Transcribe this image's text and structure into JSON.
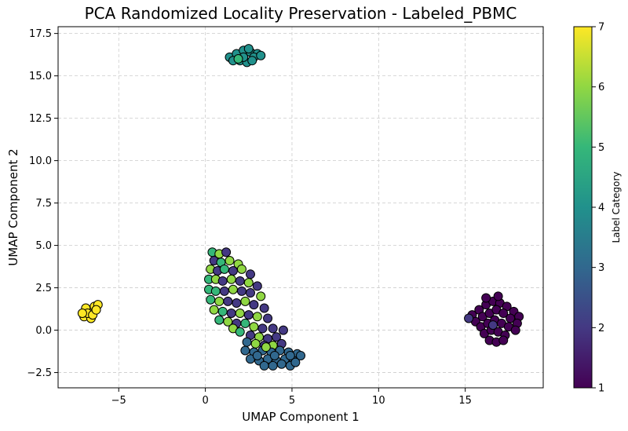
{
  "chart_data": {
    "type": "scatter",
    "title": "PCA Randomized Locality Preservation - Labeled_PBMC",
    "xlabel": "UMAP Component 1",
    "ylabel": "UMAP Component 2",
    "xlim": [
      -8.5,
      19.5
    ],
    "ylim": [
      -3.4,
      17.9
    ],
    "xticks": [
      -5,
      0,
      5,
      10,
      15
    ],
    "xtick_labels": [
      "−5",
      "0",
      "5",
      "10",
      "15"
    ],
    "yticks": [
      -2.5,
      0.0,
      2.5,
      5.0,
      7.5,
      10.0,
      12.5,
      15.0,
      17.5
    ],
    "ytick_labels": [
      "−2.5",
      "0.0",
      "2.5",
      "5.0",
      "7.5",
      "10.0",
      "12.5",
      "15.0",
      "17.5"
    ],
    "grid": true,
    "colormap": "viridis",
    "marker_edge_color": "#000000",
    "colorbar": {
      "label": "Label Category",
      "range": [
        1,
        7
      ],
      "ticks": [
        1,
        2,
        3,
        4,
        5,
        6,
        7
      ],
      "tick_labels": [
        "1",
        "2",
        "3",
        "4",
        "5",
        "6",
        "7"
      ]
    },
    "points": [
      {
        "x": -7.0,
        "y": 0.8,
        "label": 7
      },
      {
        "x": -6.7,
        "y": 1.1,
        "label": 7
      },
      {
        "x": -6.4,
        "y": 1.4,
        "label": 7
      },
      {
        "x": -6.9,
        "y": 1.3,
        "label": 7
      },
      {
        "x": -6.6,
        "y": 0.7,
        "label": 7
      },
      {
        "x": -6.2,
        "y": 1.5,
        "label": 7
      },
      {
        "x": -6.8,
        "y": 1.0,
        "label": 7
      },
      {
        "x": -6.5,
        "y": 0.9,
        "label": 7
      },
      {
        "x": -6.3,
        "y": 1.2,
        "label": 7
      },
      {
        "x": -7.1,
        "y": 1.0,
        "label": 7
      },
      {
        "x": 1.4,
        "y": 16.1,
        "label": 4
      },
      {
        "x": 1.8,
        "y": 16.3,
        "label": 4
      },
      {
        "x": 2.2,
        "y": 16.5,
        "label": 4
      },
      {
        "x": 2.6,
        "y": 16.4,
        "label": 4
      },
      {
        "x": 3.0,
        "y": 16.3,
        "label": 4
      },
      {
        "x": 2.0,
        "y": 15.9,
        "label": 4
      },
      {
        "x": 2.4,
        "y": 15.8,
        "label": 4
      },
      {
        "x": 1.6,
        "y": 15.9,
        "label": 4
      },
      {
        "x": 2.8,
        "y": 16.1,
        "label": 4
      },
      {
        "x": 3.2,
        "y": 16.2,
        "label": 4
      },
      {
        "x": 2.2,
        "y": 16.1,
        "label": 4
      },
      {
        "x": 2.5,
        "y": 16.6,
        "label": 4
      },
      {
        "x": 1.9,
        "y": 16.0,
        "label": 5
      },
      {
        "x": 2.7,
        "y": 15.9,
        "label": 4
      },
      {
        "x": 0.4,
        "y": 4.6,
        "label": 5
      },
      {
        "x": 0.8,
        "y": 4.5,
        "label": 6
      },
      {
        "x": 1.2,
        "y": 4.6,
        "label": 2
      },
      {
        "x": 0.5,
        "y": 4.1,
        "label": 2
      },
      {
        "x": 0.9,
        "y": 4.0,
        "label": 5
      },
      {
        "x": 1.4,
        "y": 4.1,
        "label": 6
      },
      {
        "x": 1.9,
        "y": 3.9,
        "label": 6
      },
      {
        "x": 0.3,
        "y": 3.6,
        "label": 6
      },
      {
        "x": 0.7,
        "y": 3.5,
        "label": 2
      },
      {
        "x": 1.1,
        "y": 3.6,
        "label": 5
      },
      {
        "x": 1.6,
        "y": 3.5,
        "label": 2
      },
      {
        "x": 2.1,
        "y": 3.6,
        "label": 6
      },
      {
        "x": 2.6,
        "y": 3.3,
        "label": 2
      },
      {
        "x": 0.2,
        "y": 3.0,
        "label": 5
      },
      {
        "x": 0.6,
        "y": 3.0,
        "label": 6
      },
      {
        "x": 1.0,
        "y": 2.9,
        "label": 2
      },
      {
        "x": 1.5,
        "y": 3.0,
        "label": 6
      },
      {
        "x": 2.0,
        "y": 2.9,
        "label": 2
      },
      {
        "x": 2.5,
        "y": 2.8,
        "label": 6
      },
      {
        "x": 3.0,
        "y": 2.6,
        "label": 2
      },
      {
        "x": 0.2,
        "y": 2.4,
        "label": 5
      },
      {
        "x": 0.6,
        "y": 2.3,
        "label": 5
      },
      {
        "x": 1.1,
        "y": 2.3,
        "label": 2
      },
      {
        "x": 1.6,
        "y": 2.4,
        "label": 6
      },
      {
        "x": 2.1,
        "y": 2.3,
        "label": 2
      },
      {
        "x": 2.6,
        "y": 2.2,
        "label": 2
      },
      {
        "x": 3.2,
        "y": 2.0,
        "label": 6
      },
      {
        "x": 0.3,
        "y": 1.8,
        "label": 5
      },
      {
        "x": 0.8,
        "y": 1.7,
        "label": 6
      },
      {
        "x": 1.3,
        "y": 1.7,
        "label": 2
      },
      {
        "x": 1.8,
        "y": 1.6,
        "label": 2
      },
      {
        "x": 2.3,
        "y": 1.7,
        "label": 6
      },
      {
        "x": 2.8,
        "y": 1.5,
        "label": 2
      },
      {
        "x": 3.4,
        "y": 1.3,
        "label": 2
      },
      {
        "x": 0.5,
        "y": 1.2,
        "label": 6
      },
      {
        "x": 1.0,
        "y": 1.1,
        "label": 5
      },
      {
        "x": 1.5,
        "y": 1.0,
        "label": 2
      },
      {
        "x": 2.0,
        "y": 1.0,
        "label": 6
      },
      {
        "x": 2.5,
        "y": 0.9,
        "label": 2
      },
      {
        "x": 3.0,
        "y": 0.8,
        "label": 6
      },
      {
        "x": 3.6,
        "y": 0.7,
        "label": 2
      },
      {
        "x": 0.8,
        "y": 0.6,
        "label": 5
      },
      {
        "x": 1.3,
        "y": 0.5,
        "label": 6
      },
      {
        "x": 1.8,
        "y": 0.4,
        "label": 2
      },
      {
        "x": 2.3,
        "y": 0.4,
        "label": 5
      },
      {
        "x": 2.8,
        "y": 0.2,
        "label": 6
      },
      {
        "x": 3.3,
        "y": 0.1,
        "label": 2
      },
      {
        "x": 3.9,
        "y": 0.1,
        "label": 2
      },
      {
        "x": 1.6,
        "y": 0.1,
        "label": 6
      },
      {
        "x": 2.0,
        "y": -0.1,
        "label": 5
      },
      {
        "x": 2.6,
        "y": -0.3,
        "label": 2
      },
      {
        "x": 3.1,
        "y": -0.4,
        "label": 6
      },
      {
        "x": 3.6,
        "y": -0.5,
        "label": 2
      },
      {
        "x": 4.1,
        "y": -0.4,
        "label": 2
      },
      {
        "x": 4.5,
        "y": 0.0,
        "label": 2
      },
      {
        "x": 2.4,
        "y": -0.7,
        "label": 3
      },
      {
        "x": 2.9,
        "y": -0.8,
        "label": 6
      },
      {
        "x": 3.4,
        "y": -0.9,
        "label": 2
      },
      {
        "x": 3.9,
        "y": -0.9,
        "label": 6
      },
      {
        "x": 4.4,
        "y": -0.8,
        "label": 2
      },
      {
        "x": 2.3,
        "y": -1.2,
        "label": 3
      },
      {
        "x": 2.8,
        "y": -1.3,
        "label": 3
      },
      {
        "x": 3.3,
        "y": -1.2,
        "label": 3
      },
      {
        "x": 3.8,
        "y": -1.3,
        "label": 3
      },
      {
        "x": 4.3,
        "y": -1.2,
        "label": 3
      },
      {
        "x": 4.8,
        "y": -1.3,
        "label": 3
      },
      {
        "x": 5.3,
        "y": -1.4,
        "label": 3
      },
      {
        "x": 2.6,
        "y": -1.7,
        "label": 3
      },
      {
        "x": 3.1,
        "y": -1.8,
        "label": 3
      },
      {
        "x": 3.6,
        "y": -1.7,
        "label": 3
      },
      {
        "x": 4.1,
        "y": -1.8,
        "label": 3
      },
      {
        "x": 4.6,
        "y": -1.7,
        "label": 3
      },
      {
        "x": 5.1,
        "y": -1.8,
        "label": 3
      },
      {
        "x": 5.5,
        "y": -1.5,
        "label": 3
      },
      {
        "x": 3.4,
        "y": -2.1,
        "label": 3
      },
      {
        "x": 3.9,
        "y": -2.1,
        "label": 3
      },
      {
        "x": 4.4,
        "y": -2.0,
        "label": 3
      },
      {
        "x": 4.9,
        "y": -2.1,
        "label": 3
      },
      {
        "x": 3.0,
        "y": -1.5,
        "label": 3
      },
      {
        "x": 4.0,
        "y": -1.5,
        "label": 3
      },
      {
        "x": 4.9,
        "y": -1.5,
        "label": 3
      },
      {
        "x": 3.5,
        "y": -1.0,
        "label": 6
      },
      {
        "x": 5.2,
        "y": -1.9,
        "label": 3
      },
      {
        "x": 15.4,
        "y": 0.9,
        "label": 1
      },
      {
        "x": 15.8,
        "y": 1.2,
        "label": 1
      },
      {
        "x": 16.2,
        "y": 1.5,
        "label": 1
      },
      {
        "x": 16.6,
        "y": 1.7,
        "label": 1
      },
      {
        "x": 17.0,
        "y": 1.6,
        "label": 1
      },
      {
        "x": 17.4,
        "y": 1.4,
        "label": 1
      },
      {
        "x": 17.8,
        "y": 1.1,
        "label": 1
      },
      {
        "x": 18.1,
        "y": 0.8,
        "label": 1
      },
      {
        "x": 15.6,
        "y": 0.5,
        "label": 1
      },
      {
        "x": 16.0,
        "y": 0.8,
        "label": 1
      },
      {
        "x": 16.4,
        "y": 1.0,
        "label": 1
      },
      {
        "x": 16.8,
        "y": 1.2,
        "label": 1
      },
      {
        "x": 17.2,
        "y": 1.0,
        "label": 1
      },
      {
        "x": 17.6,
        "y": 0.7,
        "label": 1
      },
      {
        "x": 18.0,
        "y": 0.4,
        "label": 1
      },
      {
        "x": 15.9,
        "y": 0.2,
        "label": 1
      },
      {
        "x": 16.3,
        "y": 0.4,
        "label": 1
      },
      {
        "x": 16.7,
        "y": 0.6,
        "label": 1
      },
      {
        "x": 17.1,
        "y": 0.4,
        "label": 1
      },
      {
        "x": 17.5,
        "y": 0.2,
        "label": 1
      },
      {
        "x": 17.9,
        "y": 0.0,
        "label": 1
      },
      {
        "x": 16.1,
        "y": -0.2,
        "label": 1
      },
      {
        "x": 16.5,
        "y": 0.0,
        "label": 1
      },
      {
        "x": 16.9,
        "y": -0.1,
        "label": 1
      },
      {
        "x": 17.3,
        "y": -0.3,
        "label": 1
      },
      {
        "x": 16.4,
        "y": -0.6,
        "label": 1
      },
      {
        "x": 16.8,
        "y": -0.7,
        "label": 1
      },
      {
        "x": 17.2,
        "y": -0.6,
        "label": 1
      },
      {
        "x": 16.2,
        "y": 1.9,
        "label": 1
      },
      {
        "x": 16.9,
        "y": 2.0,
        "label": 1
      },
      {
        "x": 15.2,
        "y": 0.7,
        "label": 2
      },
      {
        "x": 16.6,
        "y": 0.3,
        "label": 2
      }
    ]
  }
}
